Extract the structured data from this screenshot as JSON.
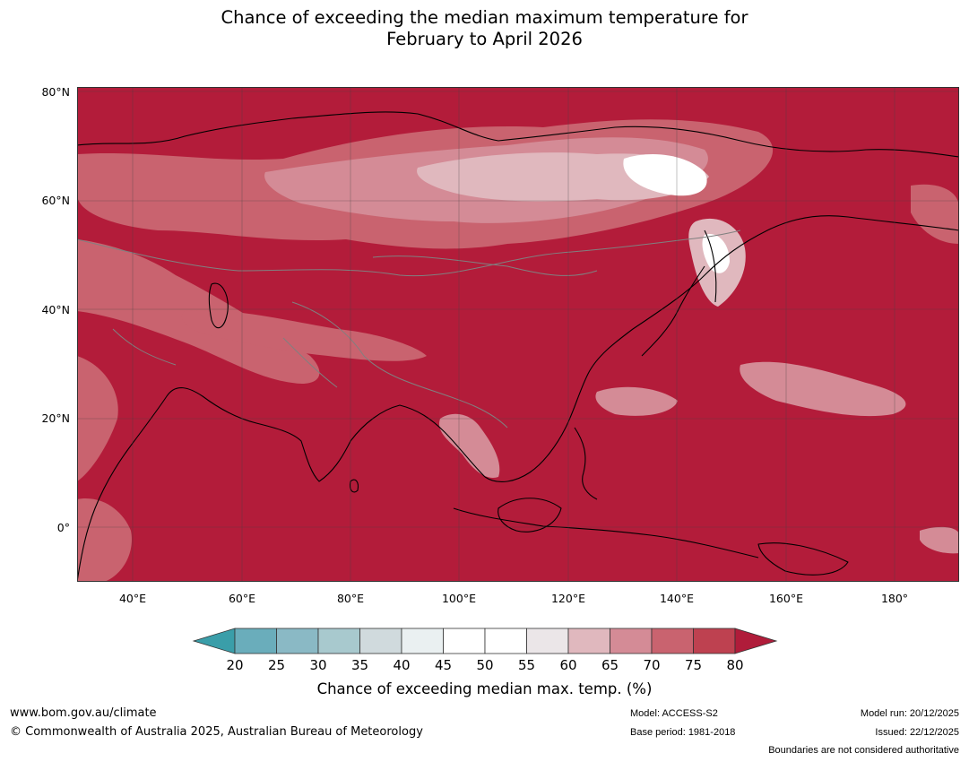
{
  "title_line1": "Chance of exceeding the median maximum temperature for",
  "title_line2": "February to April 2026",
  "map": {
    "lat_labels": [
      "80°N",
      "60°N",
      "40°N",
      "20°N",
      "0°"
    ],
    "lon_labels": [
      "40°E",
      "60°E",
      "80°E",
      "100°E",
      "120°E",
      "140°E",
      "160°E",
      "180°"
    ],
    "base_color": "#b31c3a"
  },
  "colorbar": {
    "ticks": [
      "20",
      "25",
      "30",
      "35",
      "40",
      "45",
      "50",
      "55",
      "60",
      "65",
      "70",
      "75",
      "80"
    ],
    "colors": [
      "#3a9ea9",
      "#6aadbb",
      "#8ab9c5",
      "#a8c9ce",
      "#d0dadd",
      "#eaf0f1",
      "#ffffff",
      "#ffffff",
      "#ebe6e8",
      "#e0b8be",
      "#d48b96",
      "#c9636f",
      "#be4150",
      "#b01c3a"
    ],
    "label": "Chance of exceeding median max. temp. (%)"
  },
  "footer": {
    "website": "www.bom.gov.au/climate",
    "copyright": "© Commonwealth of Australia 2025, Australian Bureau of Meteorology",
    "model": "Model: ACCESS-S2",
    "base_period": "Base period: 1981-2018",
    "model_run": "Model run: 20/12/2025",
    "issued": "Issued: 22/12/2025",
    "boundaries": "Boundaries are not considered authoritative"
  }
}
